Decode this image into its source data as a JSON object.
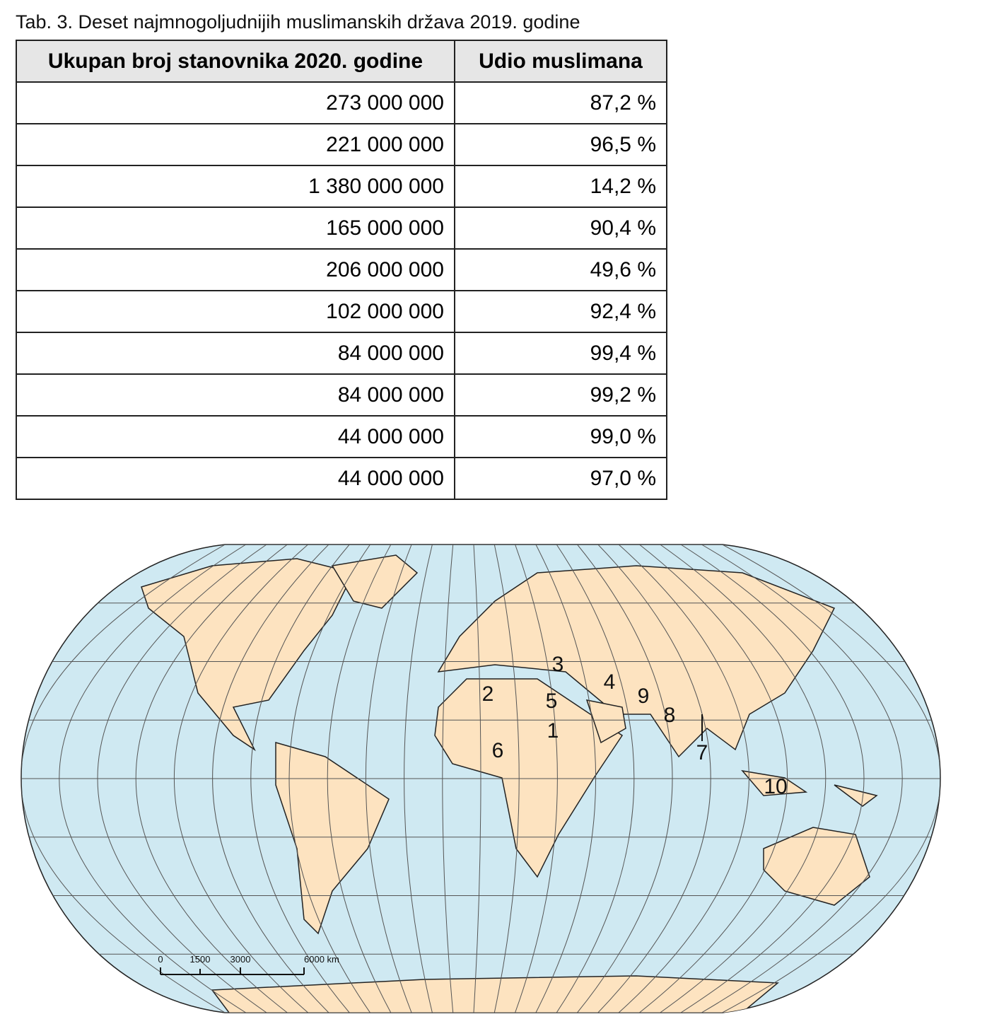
{
  "caption": "Tab. 3. Deset najmnogoljudnijih muslimanskih država 2019. godine",
  "table": {
    "header": [
      "Ukupan broj stanovnika 2020. godine",
      "Udio muslimana"
    ],
    "rows": [
      [
        "273 000 000",
        "87,2 %"
      ],
      [
        "221 000 000",
        "96,5 %"
      ],
      [
        "1 380 000 000",
        "14,2 %"
      ],
      [
        "165 000 000",
        "90,4 %"
      ],
      [
        "206 000 000",
        "49,6 %"
      ],
      [
        "102 000 000",
        "92,4 %"
      ],
      [
        "84 000 000",
        "99,4 %"
      ],
      [
        "84 000 000",
        "99,2 %"
      ],
      [
        "44 000 000",
        "99,0 %"
      ],
      [
        "44 000 000",
        "97,0 %"
      ]
    ]
  },
  "map": {
    "labels": [
      "1",
      "2",
      "3",
      "4",
      "5",
      "6",
      "7",
      "8",
      "9",
      "10"
    ],
    "scale": [
      "0",
      "1500",
      "3000",
      "6000 km"
    ]
  }
}
